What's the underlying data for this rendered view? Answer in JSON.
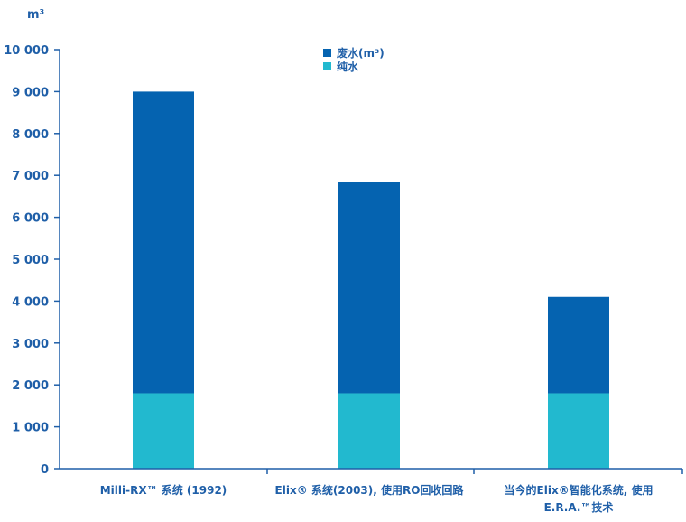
{
  "chart_data": {
    "type": "bar",
    "stacked": true,
    "ylabel": "m³",
    "ylim": [
      0,
      10000
    ],
    "yticks": [
      0,
      1000,
      2000,
      3000,
      4000,
      5000,
      6000,
      7000,
      8000,
      9000,
      10000
    ],
    "ytick_labels": [
      "0",
      "1 000",
      "2 000",
      "3 000",
      "4 000",
      "5 000",
      "6 000",
      "7 000",
      "8 000",
      "9 000",
      "10 000"
    ],
    "categories": [
      [
        "Milli-RX™ 系统 (1992)"
      ],
      [
        "Elix® 系统(2003), 使用RO回收回路"
      ],
      [
        "当今的Elix®智能化系统, 使用",
        "E.R.A.™技术"
      ]
    ],
    "series": [
      {
        "name": "纯水",
        "color": "#22b9cf",
        "values": [
          1800,
          1800,
          1800
        ]
      },
      {
        "name": "废水(m³)",
        "color": "#0563b0",
        "values": [
          7200,
          5050,
          2300
        ]
      }
    ],
    "legend": {
      "placement": "top-center",
      "order": [
        "废水(m³)",
        "纯水"
      ]
    },
    "grid": false
  },
  "colors": {
    "axis": "#1f5fa8",
    "text": "#1f5fa8"
  }
}
